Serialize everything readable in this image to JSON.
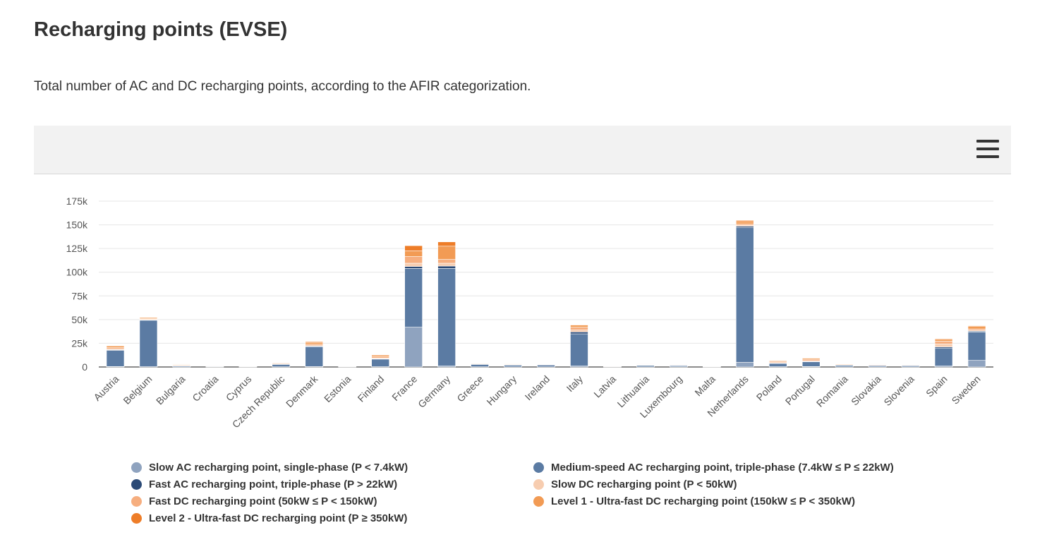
{
  "page": {
    "title": "Recharging points (EVSE)",
    "description": "Total number of AC and DC recharging points, according to the AFIR categorization."
  },
  "toolbar": {
    "menu_icon": "hamburger-menu-icon"
  },
  "chart_data": {
    "type": "bar",
    "stacked": true,
    "title": "",
    "xlabel": "",
    "ylabel": "",
    "ylim": [
      0,
      175000
    ],
    "yticks": [
      0,
      25000,
      50000,
      75000,
      100000,
      125000,
      150000,
      175000
    ],
    "ytick_labels": [
      "0",
      "25k",
      "50k",
      "75k",
      "100k",
      "125k",
      "150k",
      "175k"
    ],
    "grid": true,
    "legend_position": "bottom",
    "categories": [
      "Austria",
      "Belgium",
      "Bulgaria",
      "Croatia",
      "Cyprus",
      "Czech Republic",
      "Denmark",
      "Estonia",
      "Finland",
      "France",
      "Germany",
      "Greece",
      "Hungary",
      "Ireland",
      "Italy",
      "Latvia",
      "Lithuania",
      "Luxembourg",
      "Malta",
      "Netherlands",
      "Poland",
      "Portugal",
      "Romania",
      "Slovakia",
      "Slovenia",
      "Spain",
      "Sweden"
    ],
    "series": [
      {
        "name": "Slow AC recharging point, single-phase (P < 7.4kW)",
        "color": "#8fa3bf",
        "values": [
          500,
          300,
          100,
          50,
          30,
          200,
          400,
          50,
          300,
          42000,
          1000,
          200,
          150,
          150,
          1000,
          30,
          100,
          200,
          20,
          5000,
          300,
          500,
          200,
          150,
          100,
          1000,
          7000
        ]
      },
      {
        "name": "Medium-speed AC recharging point, triple-phase (7.4kW ≤ P ≤ 22kW)",
        "color": "#5b7ba3",
        "values": [
          17000,
          49000,
          1000,
          500,
          300,
          2500,
          21000,
          300,
          8000,
          62000,
          103000,
          2500,
          1800,
          1900,
          34000,
          300,
          1500,
          1200,
          100,
          142000,
          3500,
          5000,
          1500,
          1200,
          1200,
          19000,
          30000
        ]
      },
      {
        "name": "Fast AC recharging point, triple-phase (P > 22kW)",
        "color": "#2b4a76",
        "values": [
          700,
          400,
          50,
          50,
          20,
          200,
          600,
          30,
          400,
          2000,
          2500,
          200,
          150,
          100,
          2000,
          20,
          100,
          80,
          5,
          1500,
          200,
          300,
          100,
          100,
          100,
          1200,
          800
        ]
      },
      {
        "name": "Slow DC recharging point (P < 50kW)",
        "color": "#f7cdb0",
        "values": [
          700,
          500,
          300,
          150,
          50,
          400,
          500,
          100,
          600,
          3500,
          3000,
          300,
          300,
          200,
          2000,
          100,
          200,
          150,
          5,
          800,
          600,
          800,
          300,
          300,
          200,
          3000,
          800
        ]
      },
      {
        "name": "Fast DC recharging point (50kW ≤ P < 150kW)",
        "color": "#f6ae7f",
        "values": [
          1500,
          800,
          700,
          300,
          80,
          800,
          1500,
          300,
          1500,
          7000,
          4000,
          600,
          600,
          400,
          3000,
          200,
          400,
          300,
          10,
          1500,
          1300,
          1500,
          700,
          600,
          500,
          3000,
          1500
        ]
      },
      {
        "name": "Level 1 - Ultra-fast DC recharging point (150kW ≤ P < 350kW)",
        "color": "#f29b54",
        "values": [
          1800,
          1200,
          500,
          250,
          50,
          500,
          2000,
          150,
          1800,
          6000,
          14000,
          400,
          300,
          300,
          2200,
          150,
          300,
          300,
          0,
          2500,
          800,
          1200,
          400,
          300,
          200,
          2000,
          3000
        ]
      },
      {
        "name": "Level 2 - Ultra-fast DC recharging point (P ≥ 350kW)",
        "color": "#ee7d28",
        "values": [
          300,
          300,
          150,
          100,
          20,
          200,
          800,
          80,
          400,
          5500,
          4500,
          200,
          150,
          100,
          500,
          50,
          100,
          200,
          0,
          1300,
          300,
          400,
          100,
          100,
          100,
          700,
          500
        ]
      }
    ]
  }
}
